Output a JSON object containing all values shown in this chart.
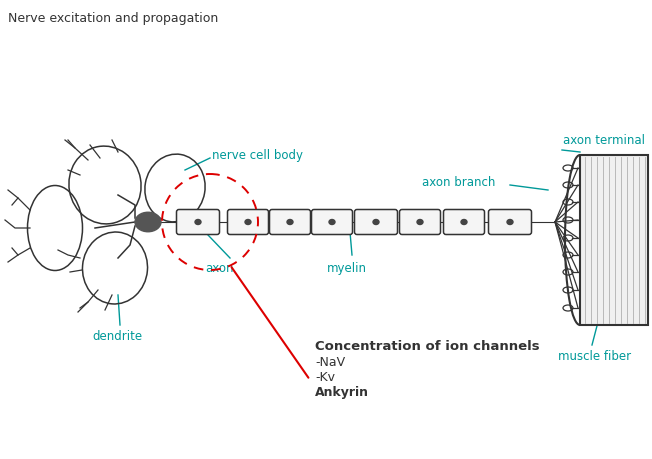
{
  "title": "Nerve excitation and propagation",
  "title_fontsize": 9,
  "title_color": "#333333",
  "background_color": "#ffffff",
  "label_color": "#009999",
  "dark_color": "#333333",
  "red_color": "#DD0000",
  "labels": {
    "nerve_cell_body": "nerve cell body",
    "axon_terminal": "axon terminal",
    "axon_branch": "axon branch",
    "axon": "axon",
    "myelin": "myelin",
    "dendrite": "dendrite",
    "muscle_fiber": "muscle fiber"
  },
  "ion_channels_title": "Concentration of ion channels",
  "ion_channels_items": [
    "-NaV",
    "-Kv",
    "Ankyrin"
  ],
  "figsize": [
    6.52,
    4.59
  ],
  "dpi": 100,
  "xlim": [
    0,
    652
  ],
  "ylim": [
    459,
    0
  ]
}
